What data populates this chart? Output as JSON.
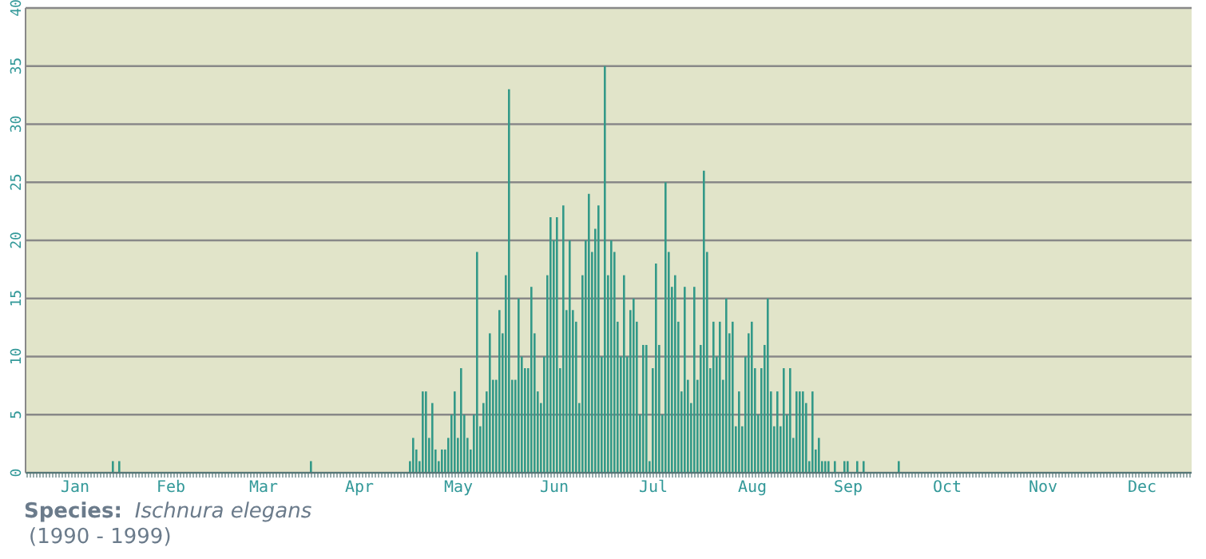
{
  "chart_data": {
    "type": "bar",
    "title": "Species:",
    "subtitle": "Ischnura elegans",
    "annotations": [
      "(1990 - 1999)"
    ],
    "categories": [
      null,
      null,
      null,
      null,
      null,
      null,
      null,
      null,
      null,
      null,
      null,
      null,
      null,
      null,
      null,
      "Jan",
      null,
      null,
      null,
      null,
      null,
      null,
      null,
      null,
      null,
      null,
      null,
      null,
      null,
      null,
      null,
      null,
      null,
      null,
      null,
      null,
      null,
      null,
      null,
      null,
      null,
      null,
      null,
      null,
      null,
      "Feb",
      null,
      null,
      null,
      null,
      null,
      null,
      null,
      null,
      null,
      null,
      null,
      null,
      null,
      null,
      null,
      null,
      null,
      null,
      null,
      null,
      null,
      null,
      null,
      null,
      null,
      null,
      null,
      null,
      "Mar",
      null,
      null,
      null,
      null,
      null,
      null,
      null,
      null,
      null,
      null,
      null,
      null,
      null,
      null,
      null,
      null,
      null,
      null,
      null,
      null,
      null,
      null,
      null,
      null,
      null,
      null,
      null,
      null,
      null,
      "Apr",
      null,
      null,
      null,
      null,
      null,
      null,
      null,
      null,
      null,
      null,
      null,
      null,
      null,
      null,
      null,
      null,
      null,
      null,
      null,
      null,
      null,
      null,
      null,
      null,
      null,
      null,
      null,
      null,
      null,
      null,
      "May",
      null,
      null,
      null,
      null,
      null,
      null,
      null,
      null,
      null,
      null,
      null,
      null,
      null,
      null,
      null,
      null,
      null,
      null,
      null,
      null,
      null,
      null,
      null,
      null,
      null,
      null,
      null,
      null,
      null,
      "Jun",
      null,
      null,
      null,
      null,
      null,
      null,
      null,
      null,
      null,
      null,
      null,
      null,
      null,
      null,
      null,
      null,
      null,
      null,
      null,
      null,
      null,
      null,
      null,
      null,
      null,
      null,
      null,
      null,
      null,
      null,
      "Jul",
      null,
      null,
      null,
      null,
      null,
      null,
      null,
      null,
      null,
      null,
      null,
      null,
      null,
      null,
      null,
      null,
      null,
      null,
      null,
      null,
      null,
      null,
      null,
      null,
      null,
      null,
      null,
      null,
      null,
      null,
      "Aug",
      null,
      null,
      null,
      null,
      null,
      null,
      null,
      null,
      null,
      null,
      null,
      null,
      null,
      null,
      null,
      null,
      null,
      null,
      null,
      null,
      null,
      null,
      null,
      null,
      null,
      null,
      null,
      null,
      null,
      "Sep",
      null,
      null,
      null,
      null,
      null,
      null,
      null,
      null,
      null,
      null,
      null,
      null,
      null,
      null,
      null,
      null,
      null,
      null,
      null,
      null,
      null,
      null,
      null,
      null,
      null,
      null,
      null,
      null,
      null,
      null,
      "Oct",
      null,
      null,
      null,
      null,
      null,
      null,
      null,
      null,
      null,
      null,
      null,
      null,
      null,
      null,
      null,
      null,
      null,
      null,
      null,
      null,
      null,
      null,
      null,
      null,
      null,
      null,
      null,
      null,
      null,
      "Nov",
      null,
      null,
      null,
      null,
      null,
      null,
      null,
      null,
      null,
      null,
      null,
      null,
      null,
      null,
      null,
      null,
      null,
      null,
      null,
      null,
      null,
      null,
      null,
      null,
      null,
      null,
      null,
      null,
      null,
      null,
      "Dec",
      null,
      null,
      null,
      null,
      null,
      null,
      null,
      null,
      null,
      null,
      null,
      null,
      null,
      null,
      null
    ],
    "values": [
      0,
      0,
      0,
      0,
      0,
      0,
      0,
      0,
      0,
      0,
      0,
      0,
      0,
      0,
      0,
      0,
      0,
      0,
      0,
      0,
      0,
      0,
      0,
      0,
      0,
      0,
      0,
      1,
      0,
      1,
      0,
      0,
      0,
      0,
      0,
      0,
      0,
      0,
      0,
      0,
      0,
      0,
      0,
      0,
      0,
      0,
      0,
      0,
      0,
      0,
      0,
      0,
      0,
      0,
      0,
      0,
      0,
      0,
      0,
      0,
      0,
      0,
      0,
      0,
      0,
      0,
      0,
      0,
      0,
      0,
      0,
      0,
      0,
      0,
      0,
      0,
      0,
      0,
      0,
      0,
      0,
      0,
      0,
      0,
      0,
      0,
      0,
      0,
      0,
      1,
      0,
      0,
      0,
      0,
      0,
      0,
      0,
      0,
      0,
      0,
      0,
      0,
      0,
      0,
      0,
      0,
      0,
      0,
      0,
      0,
      0,
      0,
      0,
      0,
      0,
      0,
      0,
      0,
      0,
      0,
      1,
      3,
      2,
      1,
      7,
      7,
      3,
      6,
      2,
      1,
      2,
      2,
      3,
      5,
      7,
      3,
      9,
      5,
      3,
      2,
      5,
      19,
      4,
      6,
      7,
      12,
      8,
      8,
      14,
      12,
      17,
      33,
      8,
      8,
      15,
      10,
      9,
      9,
      16,
      12,
      7,
      6,
      10,
      17,
      22,
      20,
      22,
      9,
      23,
      14,
      20,
      14,
      13,
      6,
      17,
      20,
      24,
      19,
      21,
      23,
      10,
      35,
      17,
      20,
      19,
      13,
      10,
      17,
      10,
      14,
      15,
      13,
      5,
      11,
      11,
      1,
      9,
      18,
      11,
      5,
      25,
      19,
      16,
      17,
      13,
      7,
      16,
      8,
      6,
      16,
      8,
      11,
      26,
      19,
      9,
      13,
      10,
      13,
      8,
      15,
      12,
      13,
      4,
      7,
      4,
      10,
      12,
      13,
      9,
      5,
      9,
      11,
      15,
      7,
      4,
      7,
      4,
      9,
      5,
      9,
      3,
      7,
      7,
      7,
      6,
      1,
      7,
      2,
      3,
      1,
      1,
      1,
      0,
      1,
      0,
      0,
      1,
      1,
      0,
      0,
      1,
      0,
      1,
      0,
      0,
      0,
      0,
      0,
      0,
      0,
      0,
      0,
      0,
      1,
      0,
      0,
      0,
      0,
      0,
      0,
      0,
      0,
      0,
      0,
      0,
      0,
      0,
      0,
      0,
      0,
      0,
      0,
      0,
      0,
      0,
      0,
      0,
      0,
      0,
      0,
      0,
      0,
      0,
      0,
      0,
      0,
      0,
      0,
      0,
      0,
      0,
      0,
      0,
      0,
      0,
      0,
      0,
      0,
      0,
      0,
      0,
      0,
      0,
      0,
      0,
      0,
      0,
      0,
      0,
      0,
      0,
      0,
      0,
      0,
      0,
      0,
      0,
      0,
      0,
      0,
      0,
      0,
      0,
      0,
      0,
      0,
      0,
      0,
      0,
      0,
      0,
      0,
      0,
      0,
      0,
      0,
      0,
      0,
      0,
      0,
      0,
      0,
      0,
      0,
      0
    ],
    "color": "#339988",
    "ylim": [
      0,
      40
    ],
    "yticks": [
      0,
      5,
      10,
      15,
      20,
      25,
      30,
      35,
      40
    ],
    "grid": "y"
  }
}
